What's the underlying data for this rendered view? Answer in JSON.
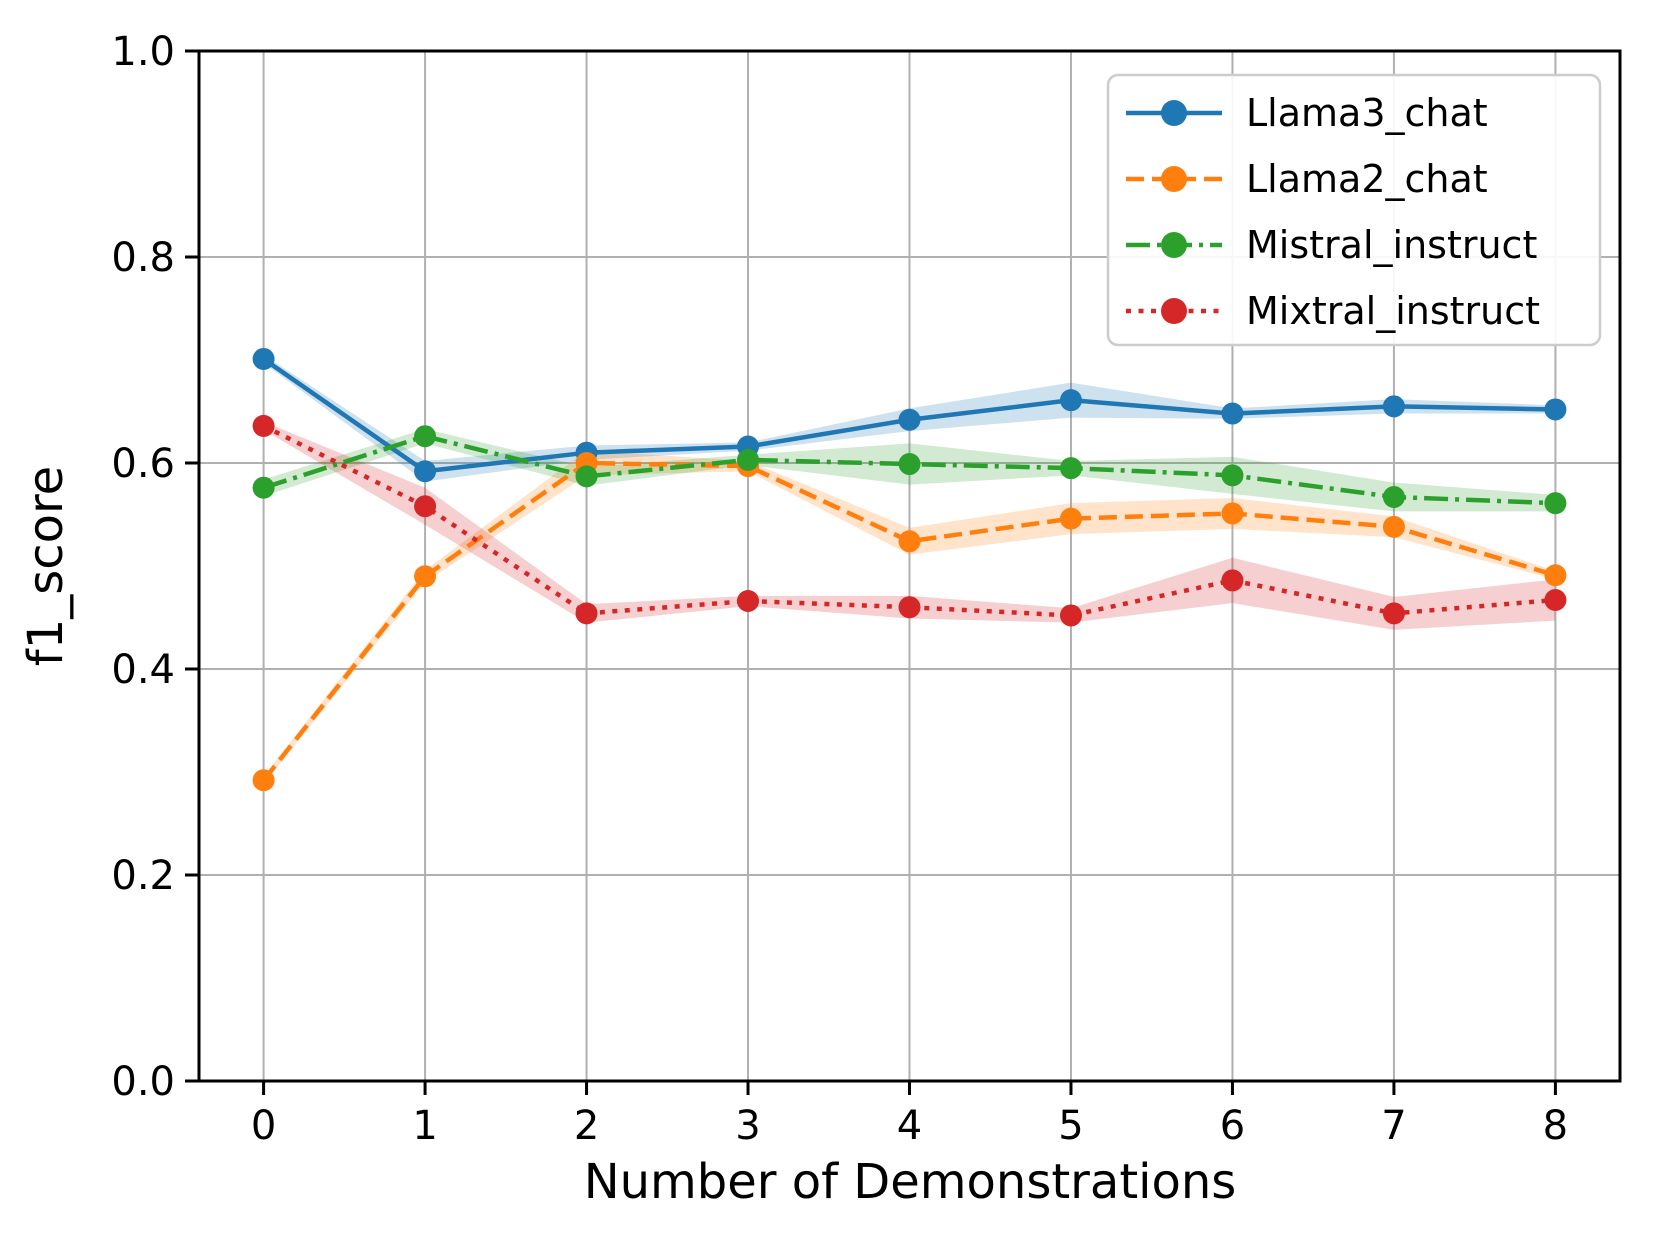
{
  "chart_data": {
    "type": "line",
    "title": "",
    "xlabel": "Number of Demonstrations",
    "ylabel": "f1_score",
    "x": [
      0,
      1,
      2,
      3,
      4,
      5,
      6,
      7,
      8
    ],
    "xlim": [
      -0.4,
      8.4
    ],
    "ylim": [
      0.0,
      1.0
    ],
    "grid": true,
    "legend_position": "upper right",
    "xticks": {
      "values": [
        0,
        1,
        2,
        3,
        4,
        5,
        6,
        7,
        8
      ],
      "labels": [
        "0",
        "1",
        "2",
        "3",
        "4",
        "5",
        "6",
        "7",
        "8"
      ]
    },
    "yticks": {
      "values": [
        0.0,
        0.2,
        0.4,
        0.6,
        0.8,
        1.0
      ],
      "labels": [
        "0.0",
        "0.2",
        "0.4",
        "0.6",
        "0.8",
        "1.0"
      ]
    },
    "grid_color": "#b0b0b0",
    "spine_color": "#000000",
    "band_opacity": 0.22,
    "series": [
      {
        "name": "Llama3_chat",
        "color": "#1f77b4",
        "linestyle": "solid",
        "marker": "circle",
        "values": [
          0.701,
          0.592,
          0.61,
          0.616,
          0.642,
          0.661,
          0.648,
          0.655,
          0.652
        ],
        "ci": [
          0.004,
          0.01,
          0.007,
          0.004,
          0.011,
          0.017,
          0.005,
          0.007,
          0.004
        ]
      },
      {
        "name": "Llama2_chat",
        "color": "#ff7f0e",
        "linestyle": "dashed",
        "marker": "circle",
        "values": [
          0.292,
          0.49,
          0.6,
          0.597,
          0.524,
          0.546,
          0.551,
          0.538,
          0.491
        ],
        "ci": [
          0.004,
          0.006,
          0.012,
          0.005,
          0.013,
          0.015,
          0.015,
          0.01,
          0.004
        ]
      },
      {
        "name": "Mistral_instruct",
        "color": "#2ca02c",
        "linestyle": "dashdot",
        "marker": "circle",
        "values": [
          0.576,
          0.626,
          0.587,
          0.603,
          0.599,
          0.595,
          0.588,
          0.567,
          0.561
        ],
        "ci": [
          0.008,
          0.007,
          0.009,
          0.005,
          0.02,
          0.007,
          0.018,
          0.014,
          0.008
        ]
      },
      {
        "name": "Mixtral_instruct",
        "color": "#d62728",
        "linestyle": "dotted",
        "marker": "circle",
        "values": [
          0.636,
          0.558,
          0.454,
          0.466,
          0.46,
          0.452,
          0.486,
          0.454,
          0.467
        ],
        "ci": [
          0.004,
          0.018,
          0.009,
          0.005,
          0.011,
          0.007,
          0.022,
          0.016,
          0.02
        ]
      }
    ]
  }
}
